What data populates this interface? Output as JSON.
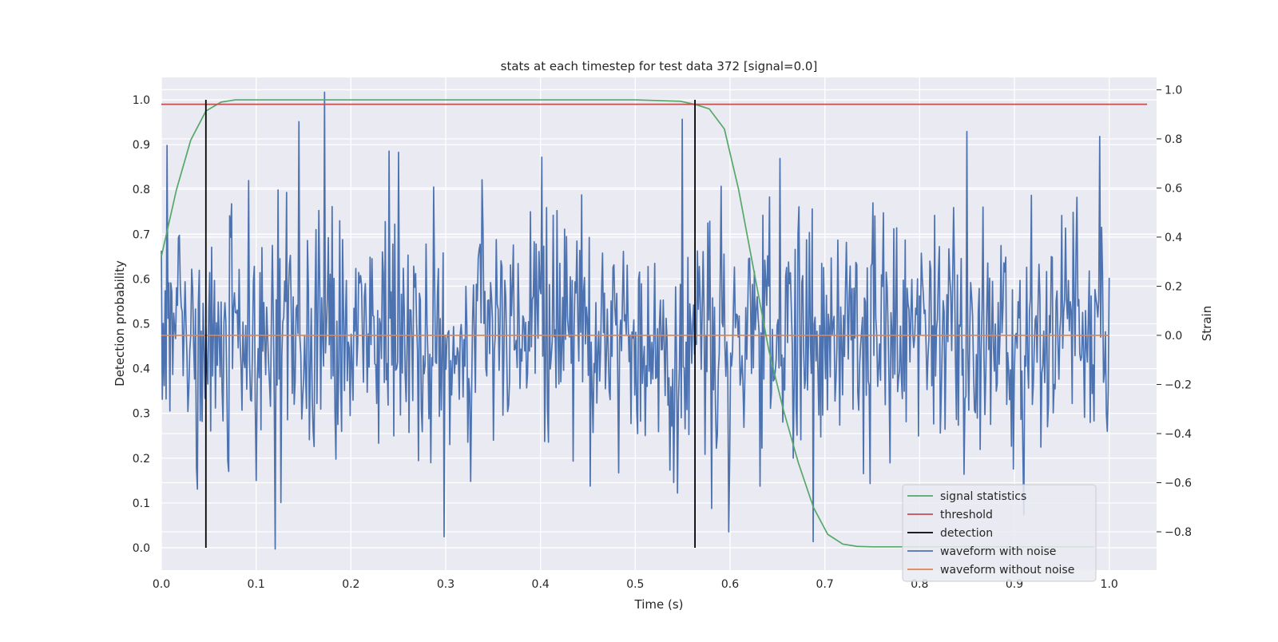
{
  "chart_data": {
    "type": "line",
    "title": "stats at each timestep for test data 372 [signal=0.0]",
    "xlabel": "Time (s)",
    "ylabel": "Detection probability",
    "y2label": "Strain",
    "xlim": [
      0.0,
      1.05
    ],
    "ylim": [
      -0.05,
      1.05
    ],
    "y2lim": [
      -0.956,
      1.05
    ],
    "xticks": [
      0.0,
      0.1,
      0.2,
      0.3,
      0.4,
      0.5,
      0.6,
      0.7,
      0.8,
      0.9,
      1.0
    ],
    "xtick_labels": [
      "0.0",
      "0.1",
      "0.2",
      "0.3",
      "0.4",
      "0.5",
      "0.6",
      "0.7",
      "0.8",
      "0.9",
      "1.0"
    ],
    "yticks": [
      0.0,
      0.1,
      0.2,
      0.3,
      0.4,
      0.5,
      0.6,
      0.7,
      0.8,
      0.9,
      1.0
    ],
    "ytick_labels": [
      "0.0",
      "0.1",
      "0.2",
      "0.3",
      "0.4",
      "0.5",
      "0.6",
      "0.7",
      "0.8",
      "0.9",
      "1.0"
    ],
    "y2ticks": [
      1.0,
      0.8,
      0.6,
      0.4,
      0.2,
      0.0,
      -0.2,
      -0.4,
      -0.6,
      -0.8
    ],
    "y2tick_labels": [
      "1.0",
      "0.8",
      "0.6",
      "0.4",
      "0.2",
      "0.0",
      "−0.2",
      "−0.4",
      "−0.6",
      "−0.8"
    ],
    "grid": true,
    "legend_position": "lower-right",
    "series": [
      {
        "name": "signal statistics",
        "axis": "left",
        "color": "#55a868",
        "x": [
          0.0,
          0.016,
          0.031,
          0.047,
          0.063,
          0.078,
          0.1,
          0.2,
          0.3,
          0.4,
          0.5,
          0.547,
          0.563,
          0.578,
          0.594,
          0.609,
          0.625,
          0.641,
          0.656,
          0.672,
          0.688,
          0.703,
          0.719,
          0.734,
          0.75,
          0.8,
          0.9,
          0.984
        ],
        "y": [
          0.65,
          0.8,
          0.91,
          0.975,
          0.995,
          1.0,
          1.0,
          1.0,
          1.0,
          1.0,
          1.0,
          0.997,
          0.99,
          0.98,
          0.935,
          0.8,
          0.62,
          0.44,
          0.31,
          0.19,
          0.09,
          0.03,
          0.008,
          0.003,
          0.002,
          0.002,
          0.002,
          0.002
        ]
      },
      {
        "name": "threshold",
        "axis": "left",
        "color": "#c44e52",
        "x": [
          0.0,
          1.04
        ],
        "y": [
          0.99,
          0.99
        ]
      },
      {
        "name": "detection",
        "axis": "left",
        "color": "#000000",
        "segments": [
          {
            "x": 0.047,
            "y0": 0.0,
            "y1": 1.0
          },
          {
            "x": 0.563,
            "y0": 0.0,
            "y1": 1.0
          }
        ]
      },
      {
        "name": "waveform with noise",
        "axis": "right",
        "color": "#4c72b0",
        "x_range": [
          0.0,
          1.0
        ],
        "n_points": 1000,
        "mean": 0.0,
        "std": 0.25,
        "y_min": -0.87,
        "y_max": 0.99,
        "spikes": [
          {
            "x": 0.12,
            "y": -0.87
          },
          {
            "x": 0.145,
            "y": 0.87
          },
          {
            "x": 0.172,
            "y": 0.99
          },
          {
            "x": 0.24,
            "y": 0.75
          },
          {
            "x": 0.298,
            "y": -0.82
          },
          {
            "x": 0.55,
            "y": 0.88
          },
          {
            "x": 0.599,
            "y": -0.8
          },
          {
            "x": 0.653,
            "y": 0.72
          },
          {
            "x": 0.688,
            "y": -0.84
          },
          {
            "x": 0.85,
            "y": 0.83
          },
          {
            "x": 0.91,
            "y": -0.73
          },
          {
            "x": 0.99,
            "y": 0.81
          }
        ]
      },
      {
        "name": "waveform without noise",
        "axis": "right",
        "color": "#dd8452",
        "x": [
          0.0,
          1.0
        ],
        "y": [
          0.0,
          0.0
        ]
      }
    ]
  }
}
